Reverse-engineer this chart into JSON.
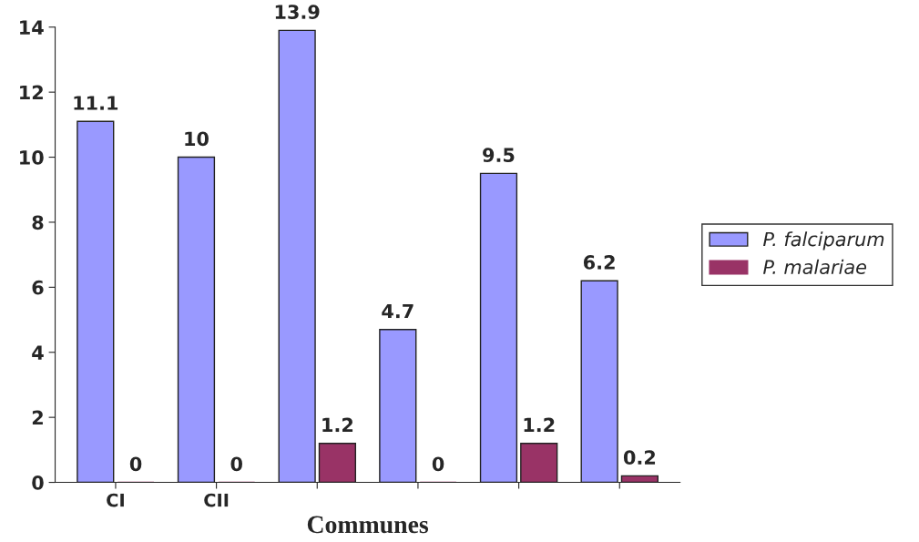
{
  "chart_data": {
    "type": "bar",
    "xlabel": "Communes",
    "categories": [
      "CI",
      "CII",
      null,
      null,
      null,
      null
    ],
    "series": [
      {
        "name": "P. falciparum",
        "color": "#9999ff",
        "values": [
          11.1,
          10,
          13.9,
          4.7,
          9.5,
          6.2
        ]
      },
      {
        "name": "P. malariae",
        "color": "#993366",
        "values": [
          0,
          0,
          1.2,
          0,
          1.2,
          0.2
        ]
      }
    ],
    "ylim": [
      0,
      14
    ],
    "yticks": [
      0,
      2,
      4,
      6,
      8,
      10,
      12,
      14
    ],
    "data_labels": true,
    "grid": false,
    "legend": "right"
  }
}
